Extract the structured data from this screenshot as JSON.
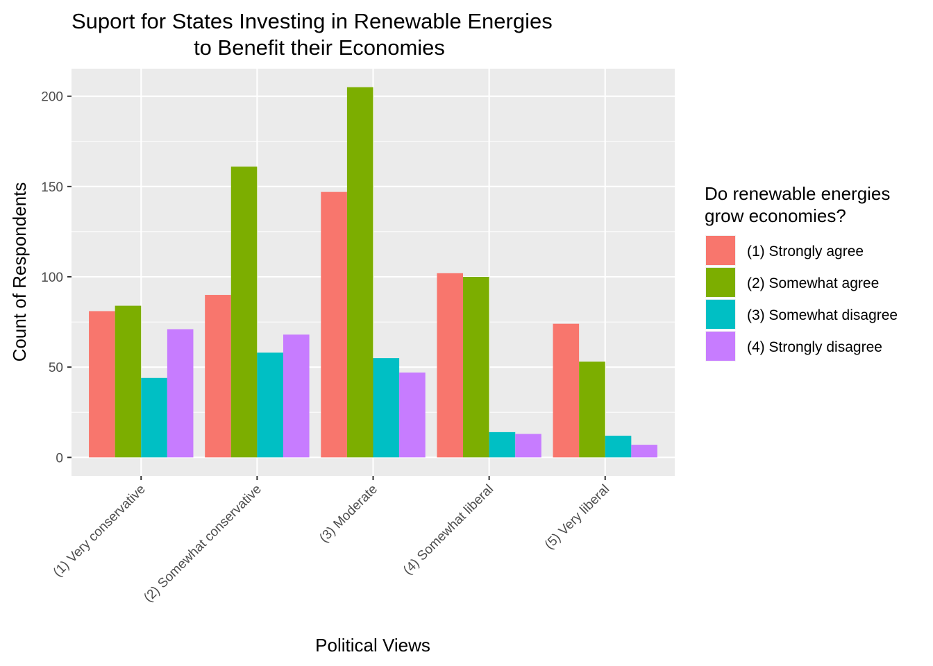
{
  "chart_data": {
    "type": "bar",
    "title": "Suport for States Investing in Renewable Energies to Benefit their Economies",
    "title_lines": [
      "Suport for States Investing in Renewable Energies",
      "to Benefit their Economies"
    ],
    "xlabel": "Political Views",
    "ylabel": "Count of Respondents",
    "categories": [
      "(1) Very conservative",
      "(2) Somewhat conservative",
      "(3) Moderate",
      "(4) Somewhat liberal",
      "(5) Very liberal"
    ],
    "series": [
      {
        "name": "(1) Strongly agree",
        "color": "#F8766D",
        "values": [
          81,
          90,
          147,
          102,
          74
        ]
      },
      {
        "name": "(2) Somewhat agree",
        "color": "#7CAE00",
        "values": [
          84,
          161,
          205,
          100,
          53
        ]
      },
      {
        "name": "(3) Somewhat disagree",
        "color": "#00BFC4",
        "values": [
          44,
          58,
          55,
          14,
          12
        ]
      },
      {
        "name": "(4) Strongly disagree",
        "color": "#C77CFF",
        "values": [
          71,
          68,
          47,
          13,
          7
        ]
      }
    ],
    "ylim": [
      -10.25,
      215.25
    ],
    "yticks": [
      0,
      50,
      100,
      150,
      200
    ],
    "grid": true,
    "legend": {
      "title": "Do renewable energies grow economies?",
      "title_lines": [
        "Do renewable energies",
        "grow economies?"
      ],
      "position": "right"
    },
    "colors": {
      "panel_background": "#EBEBEB",
      "grid": "#FFFFFF",
      "tick_text": "#4D4D4D"
    }
  }
}
